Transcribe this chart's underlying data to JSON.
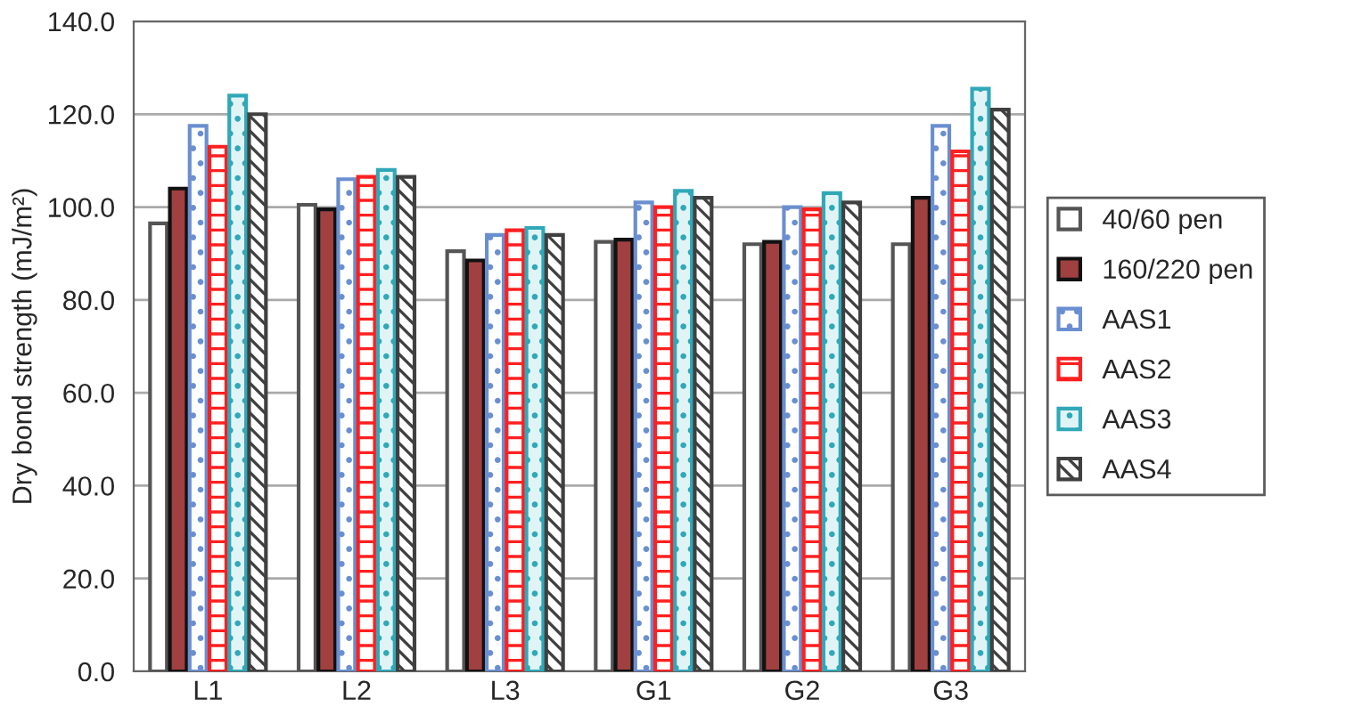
{
  "chart_data": {
    "type": "bar",
    "ylabel": "Dry bond strength (mJ/m²)",
    "categories": [
      "L1",
      "L2",
      "L3",
      "G1",
      "G2",
      "G3"
    ],
    "series": [
      {
        "name": "40/60 pen",
        "color": "#ffffff",
        "values": [
          96.5,
          100.5,
          90.5,
          92.5,
          92,
          92
        ]
      },
      {
        "name": "160/220 pen",
        "color": "#a04040",
        "values": [
          104,
          99.5,
          88.5,
          93,
          92.5,
          102
        ]
      },
      {
        "name": "AAS1",
        "color": "#6a8fd0",
        "values": [
          117.5,
          106,
          94,
          101,
          100,
          117.5
        ]
      },
      {
        "name": "AAS2",
        "color": "#ff2020",
        "values": [
          113,
          106.5,
          95,
          100,
          99.5,
          112
        ]
      },
      {
        "name": "AAS3",
        "color": "#30a8b8",
        "values": [
          124,
          108,
          95.5,
          103.5,
          103,
          125.5
        ]
      },
      {
        "name": "AAS4",
        "color": "#404040",
        "values": [
          120,
          106.5,
          94,
          102,
          101,
          121
        ]
      }
    ],
    "ylim": [
      0,
      140
    ],
    "yticks": [
      {
        "value": 0,
        "label": "0.0"
      },
      {
        "value": 20,
        "label": "20.0"
      },
      {
        "value": 40,
        "label": "40.0"
      },
      {
        "value": 60,
        "label": "60.0"
      },
      {
        "value": 80,
        "label": "80.0"
      },
      {
        "value": 100,
        "label": "100.0"
      },
      {
        "value": 120,
        "label": "120.0"
      },
      {
        "value": 140,
        "label": "140.0"
      }
    ],
    "grid": "y",
    "legend": "right"
  }
}
